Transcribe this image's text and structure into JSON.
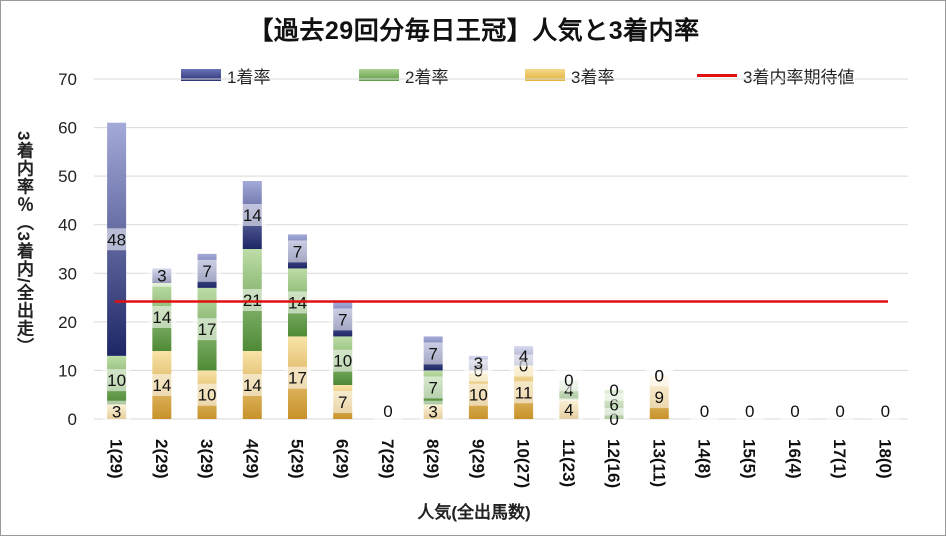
{
  "chart_data": {
    "type": "bar",
    "title": "【過去29回分毎日王冠】人気と3着内率",
    "xlabel": "人気(全出馬数)",
    "ylabel": "3着内率％（3着内/全出走）",
    "categories": [
      "1(29)",
      "2(29)",
      "3(29)",
      "4(29)",
      "5(29)",
      "6(29)",
      "7(29)",
      "8(29)",
      "9(29)",
      "10(27)",
      "11(23)",
      "12(16)",
      "13(11)",
      "14(8)",
      "15(5)",
      "16(4)",
      "17(1)",
      "18(0)"
    ],
    "series": [
      {
        "name": "3着率",
        "values": [
          3,
          14,
          10,
          14,
          17,
          7,
          0,
          3,
          10,
          11,
          4,
          0,
          9,
          0,
          0,
          0,
          0,
          0
        ],
        "color": "#e2b23c"
      },
      {
        "name": "2着率",
        "values": [
          10,
          14,
          17,
          21,
          14,
          10,
          0,
          7,
          0,
          0,
          4,
          6,
          0,
          0,
          0,
          0,
          0,
          0
        ],
        "color": "#5f9a45"
      },
      {
        "name": "1着率",
        "values": [
          48,
          3,
          7,
          14,
          7,
          7,
          0,
          7,
          3,
          4,
          0,
          0,
          0,
          0,
          0,
          0,
          0,
          0
        ],
        "color": "#2c3577"
      },
      {
        "name": "3着内率期待値",
        "type": "line",
        "value": 24.2,
        "color": "#e01010"
      }
    ],
    "legend_order": [
      "1着率",
      "2着率",
      "3着率",
      "3着内率期待値"
    ],
    "ylim": [
      0,
      70
    ],
    "yticks": [
      0,
      10,
      20,
      30,
      40,
      50,
      60,
      70
    ],
    "grid": true,
    "legend_position": "top",
    "stacked": true
  }
}
